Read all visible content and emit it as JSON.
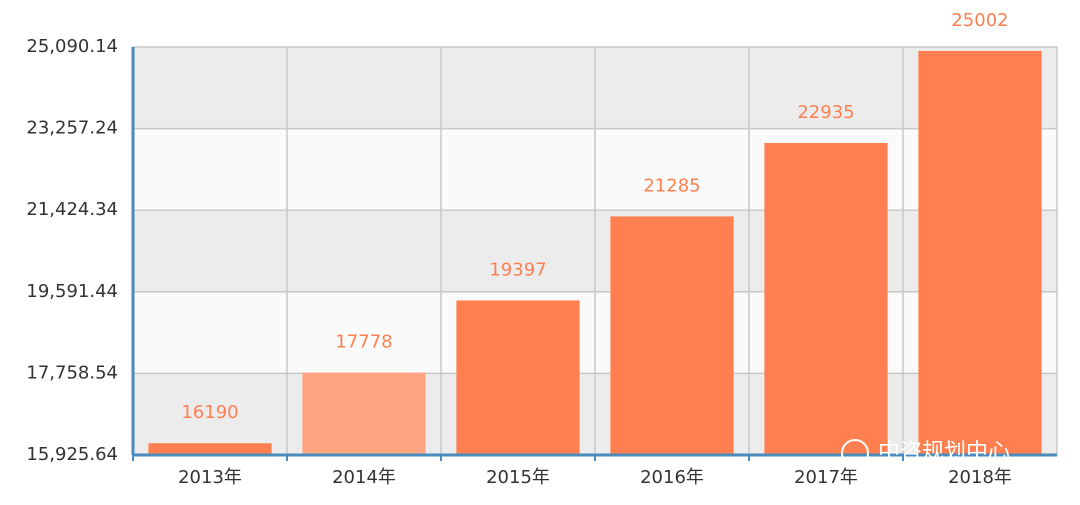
{
  "chart_data": {
    "type": "bar",
    "categories": [
      "2013年",
      "2014年",
      "2015年",
      "2016年",
      "2017年",
      "2018年"
    ],
    "values": [
      16190,
      17778,
      19397,
      21285,
      22935,
      25002
    ],
    "colors": [
      "#ff7f50",
      "#ffa582",
      "#ff7f50",
      "#ff7f50",
      "#ff7f50",
      "#ff7f50"
    ],
    "ylim": [
      15925.64,
      25090.14
    ],
    "yticks": [
      {
        "value": 15925.64,
        "label": "15,925.64"
      },
      {
        "value": 17758.54,
        "label": "17,758.54"
      },
      {
        "value": 19591.44,
        "label": "19,591.44"
      },
      {
        "value": 21424.34,
        "label": "21,424.34"
      },
      {
        "value": 23257.24,
        "label": "23,257.24"
      },
      {
        "value": 25090.14,
        "label": "25,090.14"
      }
    ],
    "grid": true,
    "watermark": "中咨规划中心"
  }
}
